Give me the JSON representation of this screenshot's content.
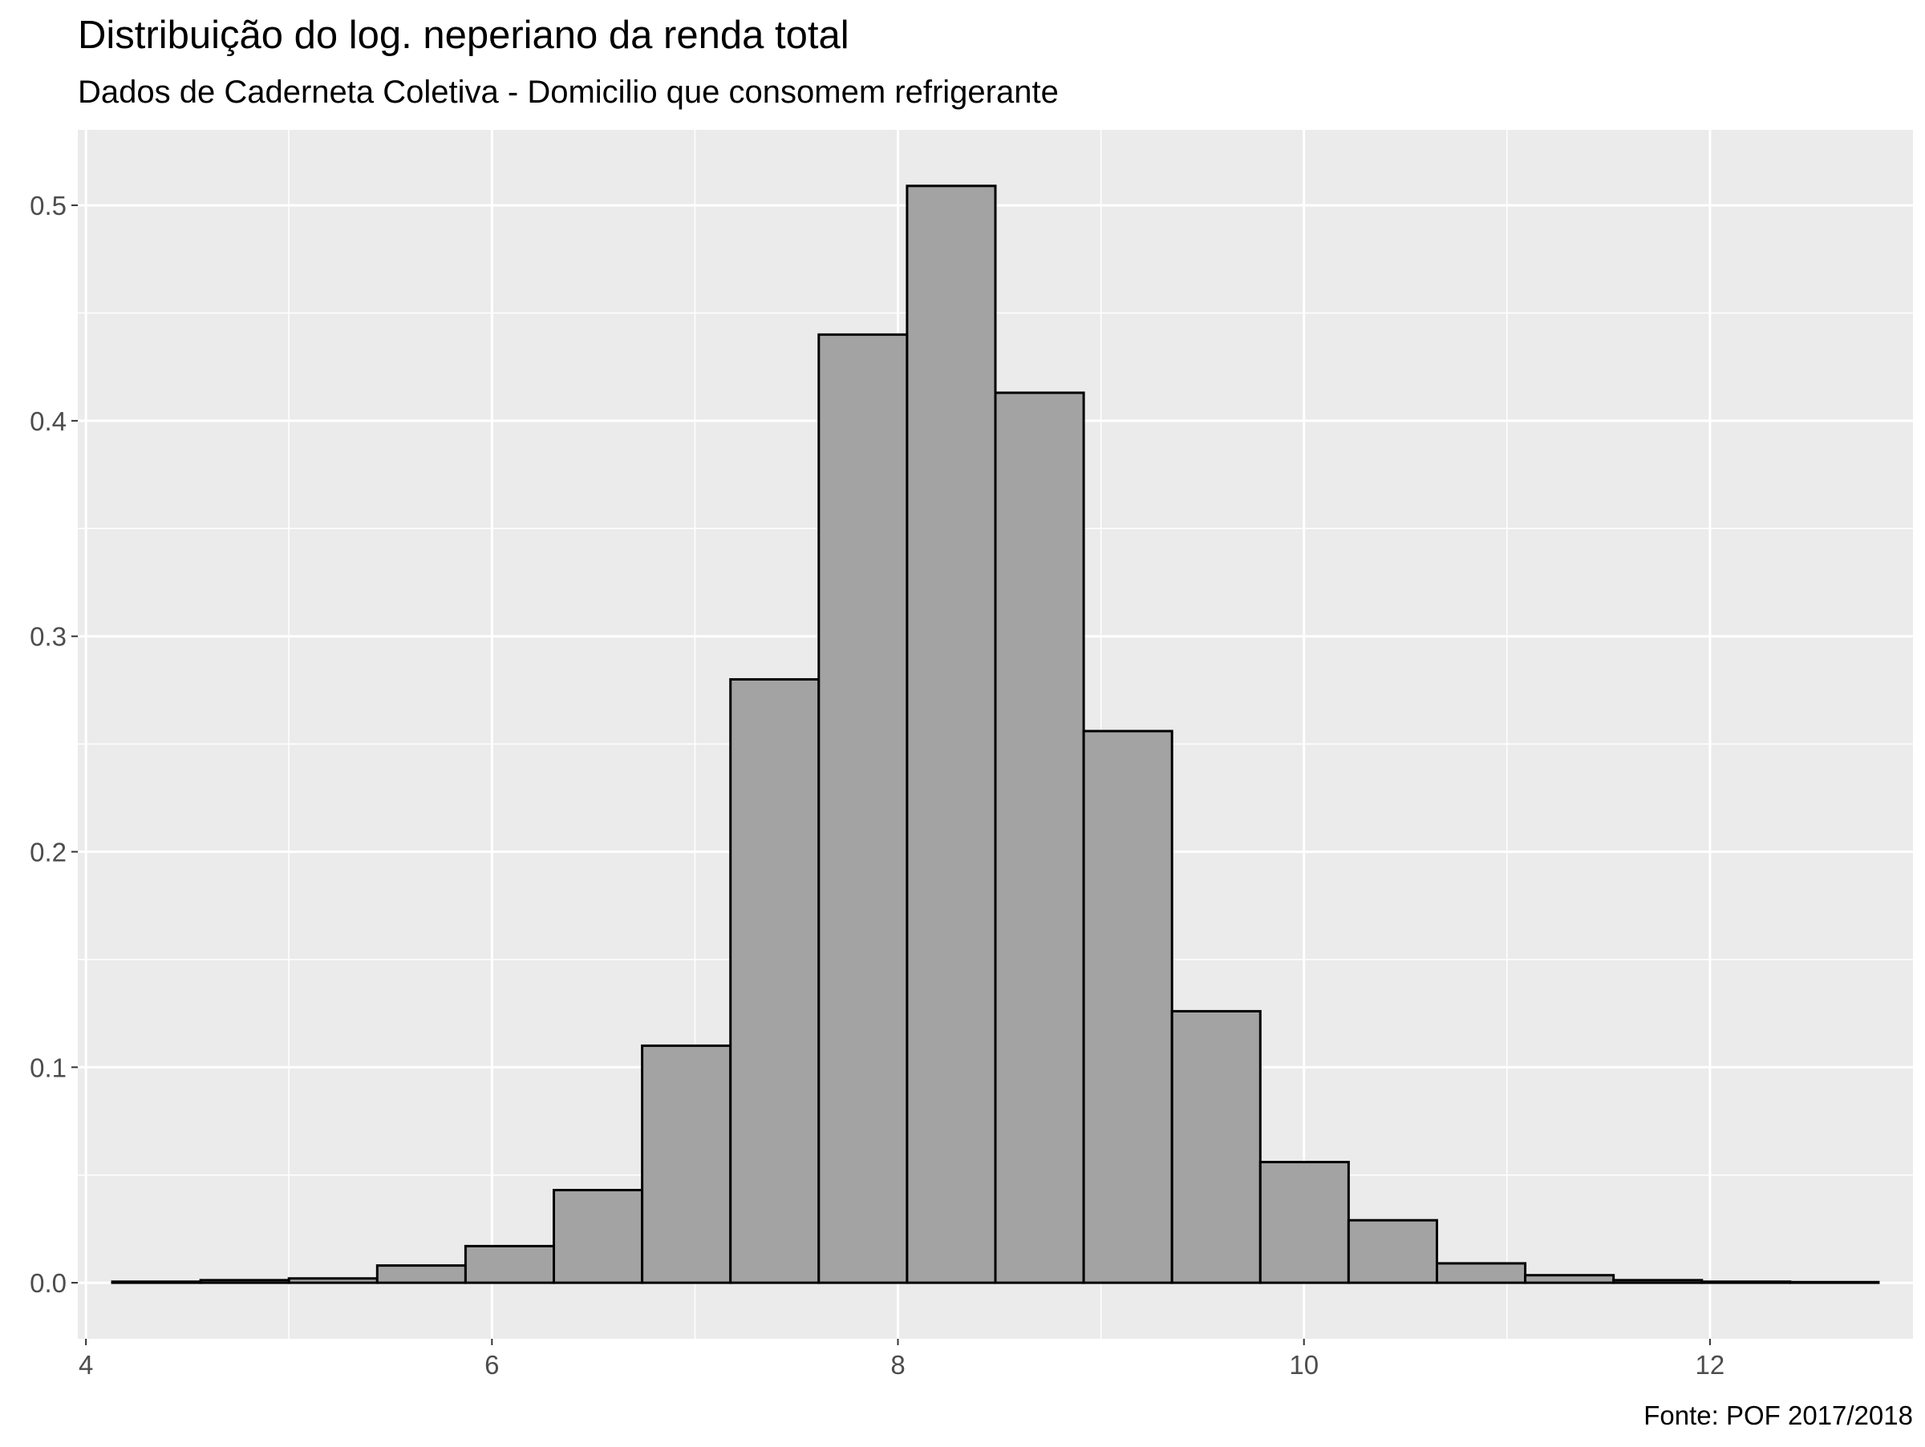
{
  "chart_data": {
    "type": "bar",
    "title": "Distribuição do log. neperiano da renda total",
    "subtitle": "Dados de Caderneta Coletiva - Domicilio que consomem refrigerante",
    "caption": "Fonte: POF 2017/2018",
    "xlabel": "",
    "ylabel": "",
    "xlim": [
      3.96,
      13.0
    ],
    "ylim": [
      -0.026,
      0.535
    ],
    "xticks": [
      4,
      6,
      8,
      10,
      12
    ],
    "xtick_labels": [
      "4",
      "6",
      "8",
      "10",
      "12"
    ],
    "yticks": [
      0.0,
      0.1,
      0.2,
      0.3,
      0.4,
      0.5
    ],
    "ytick_labels": [
      "0.0",
      "0.1",
      "0.2",
      "0.3",
      "0.4",
      "0.5"
    ],
    "grid": true,
    "bins": [
      {
        "x0": 4.13,
        "x1": 4.565,
        "value": 0.0005
      },
      {
        "x0": 4.565,
        "x1": 5.0,
        "value": 0.0012
      },
      {
        "x0": 5.0,
        "x1": 5.435,
        "value": 0.002
      },
      {
        "x0": 5.435,
        "x1": 5.87,
        "value": 0.008
      },
      {
        "x0": 5.87,
        "x1": 6.305,
        "value": 0.017
      },
      {
        "x0": 6.305,
        "x1": 6.74,
        "value": 0.043
      },
      {
        "x0": 6.74,
        "x1": 7.175,
        "value": 0.11
      },
      {
        "x0": 7.175,
        "x1": 7.61,
        "value": 0.28
      },
      {
        "x0": 7.61,
        "x1": 8.045,
        "value": 0.44
      },
      {
        "x0": 8.045,
        "x1": 8.48,
        "value": 0.509
      },
      {
        "x0": 8.48,
        "x1": 8.915,
        "value": 0.413
      },
      {
        "x0": 8.915,
        "x1": 9.35,
        "value": 0.256
      },
      {
        "x0": 9.35,
        "x1": 9.785,
        "value": 0.126
      },
      {
        "x0": 9.785,
        "x1": 10.22,
        "value": 0.056
      },
      {
        "x0": 10.22,
        "x1": 10.655,
        "value": 0.029
      },
      {
        "x0": 10.655,
        "x1": 11.09,
        "value": 0.009
      },
      {
        "x0": 11.09,
        "x1": 11.525,
        "value": 0.0035
      },
      {
        "x0": 11.525,
        "x1": 11.96,
        "value": 0.0012
      },
      {
        "x0": 11.96,
        "x1": 12.395,
        "value": 0.0005
      },
      {
        "x0": 12.395,
        "x1": 12.83,
        "value": 0.0003
      }
    ],
    "colors": {
      "panel": "#ebebeb",
      "grid": "#ffffff",
      "bar_fill": "#a3a3a3",
      "bar_stroke": "#000000",
      "tick": "#333333"
    }
  }
}
